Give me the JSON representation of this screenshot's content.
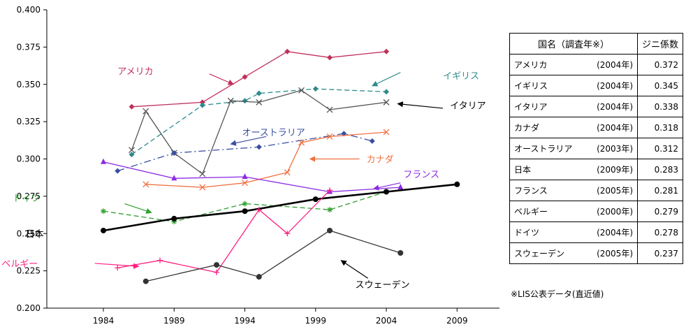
{
  "chart_data": {
    "type": "line",
    "title": "",
    "xlabel": "",
    "ylabel": "",
    "xlim": [
      1980,
      2012
    ],
    "ylim": [
      0.2,
      0.4
    ],
    "x_ticks": [
      1984,
      1989,
      1994,
      1999,
      2004,
      2009
    ],
    "y_ticks": [
      0.2,
      0.225,
      0.25,
      0.275,
      0.3,
      0.325,
      0.35,
      0.375,
      0.4
    ],
    "y_tick_labels": [
      "0.200",
      "0.225",
      "0.250",
      "0.275",
      "0.300",
      "0.325",
      "0.350",
      "0.375",
      "0.400"
    ],
    "grid": false,
    "series": [
      {
        "name": "アメリカ",
        "color": "#c0305a",
        "marker": "diamond",
        "dash": "solid",
        "points": [
          [
            1986,
            0.335
          ],
          [
            1991,
            0.338
          ],
          [
            1994,
            0.355
          ],
          [
            1997,
            0.372
          ],
          [
            2000,
            0.368
          ],
          [
            2004,
            0.372
          ]
        ]
      },
      {
        "name": "イギリス",
        "color": "#2e8b8b",
        "marker": "diamond",
        "dash": "dashed",
        "points": [
          [
            1986,
            0.303
          ],
          [
            1991,
            0.336
          ],
          [
            1994,
            0.339
          ],
          [
            1995,
            0.344
          ],
          [
            1999,
            0.347
          ],
          [
            2004,
            0.345
          ]
        ]
      },
      {
        "name": "イタリア",
        "color": "#555555",
        "marker": "x",
        "dash": "solid",
        "points": [
          [
            1986,
            0.306
          ],
          [
            1987,
            0.332
          ],
          [
            1989,
            0.304
          ],
          [
            1991,
            0.29
          ],
          [
            1993,
            0.339
          ],
          [
            1995,
            0.338
          ],
          [
            1998,
            0.346
          ],
          [
            2000,
            0.333
          ],
          [
            2004,
            0.338
          ]
        ]
      },
      {
        "name": "オーストラリア",
        "color": "#3a4fa0",
        "marker": "diamond",
        "dash": "dashdot",
        "points": [
          [
            1985,
            0.292
          ],
          [
            1989,
            0.304
          ],
          [
            1995,
            0.308
          ],
          [
            2001,
            0.317
          ],
          [
            2003,
            0.312
          ]
        ]
      },
      {
        "name": "カナダ",
        "color": "#f07040",
        "marker": "x",
        "dash": "solid",
        "points": [
          [
            1987,
            0.283
          ],
          [
            1991,
            0.281
          ],
          [
            1994,
            0.284
          ],
          [
            1997,
            0.291
          ],
          [
            1998,
            0.311
          ],
          [
            2000,
            0.315
          ],
          [
            2004,
            0.318
          ]
        ]
      },
      {
        "name": "フランス",
        "color": "#8a2be2",
        "marker": "triangle",
        "dash": "solid",
        "points": [
          [
            1984,
            0.298
          ],
          [
            1989,
            0.287
          ],
          [
            1994,
            0.288
          ],
          [
            2000,
            0.278
          ],
          [
            2005,
            0.281
          ]
        ]
      },
      {
        "name": "ドイツ",
        "color": "#2ea02e",
        "marker": "star",
        "dash": "dashed",
        "points": [
          [
            1984,
            0.265
          ],
          [
            1989,
            0.258
          ],
          [
            1994,
            0.27
          ],
          [
            2000,
            0.266
          ],
          [
            2004,
            0.278
          ]
        ]
      },
      {
        "name": "日本",
        "color": "#000000",
        "marker": "circle",
        "dash": "solid",
        "bold": true,
        "points": [
          [
            1984,
            0.252
          ],
          [
            1989,
            0.26
          ],
          [
            1994,
            0.265
          ],
          [
            1999,
            0.273
          ],
          [
            2004,
            0.278
          ],
          [
            2009,
            0.283
          ]
        ]
      },
      {
        "name": "ベルギー",
        "color": "#ff2080",
        "marker": "plus",
        "dash": "solid",
        "points": [
          [
            1985,
            0.227
          ],
          [
            1988,
            0.232
          ],
          [
            1992,
            0.224
          ],
          [
            1995,
            0.266
          ],
          [
            1997,
            0.25
          ],
          [
            2000,
            0.279
          ]
        ]
      },
      {
        "name": "スウェーデン",
        "color": "#333333",
        "marker": "circle",
        "dash": "solid",
        "points": [
          [
            1987,
            0.218
          ],
          [
            1992,
            0.229
          ],
          [
            1995,
            0.221
          ],
          [
            2000,
            0.252
          ],
          [
            2005,
            0.237
          ]
        ]
      }
    ],
    "annotations": [
      {
        "text": "アメリカ",
        "color": "#c0305a",
        "at": [
          1985,
          0.359
        ],
        "anchor": "start",
        "arrow_from": [
          1991.5,
          0.357
        ],
        "arrow_to": [
          1993.2,
          0.35
        ]
      },
      {
        "text": "イギリス",
        "color": "#2e8b8b",
        "at": [
          2008,
          0.356
        ],
        "anchor": "start",
        "arrow_from": [
          2005,
          0.358
        ],
        "arrow_to": [
          2003,
          0.349
        ]
      },
      {
        "text": "イタリア",
        "color": "#000000",
        "at": [
          2008.5,
          0.336
        ],
        "anchor": "start",
        "arrow_from": [
          2008,
          0.334
        ],
        "arrow_to": [
          2004.8,
          0.337
        ]
      },
      {
        "text": "オーストラリア",
        "color": "#3a4fa0",
        "at": [
          1993.8,
          0.318
        ],
        "anchor": "start",
        "arrow_from": [
          1995.5,
          0.315
        ],
        "arrow_to": [
          1993,
          0.31
        ]
      },
      {
        "text": "カナダ",
        "color": "#f07040",
        "at": [
          2002.6,
          0.3
        ],
        "anchor": "start",
        "arrow_from": [
          2002.1,
          0.3
        ],
        "arrow_to": [
          1998.6,
          0.3
        ]
      },
      {
        "text": "フランス",
        "color": "#8a2be2",
        "at": [
          2005.2,
          0.29
        ],
        "anchor": "start",
        "arrow_from": [
          2005,
          0.284
        ],
        "arrow_to": [
          2003.1,
          0.28
        ]
      },
      {
        "text": "ドイツ",
        "color": "#2ea02e",
        "at": [
          1977.6,
          0.274
        ],
        "anchor": "start",
        "arrow_from": [
          1985.5,
          0.27
        ],
        "arrow_to": [
          1987.4,
          0.264
        ]
      },
      {
        "text": "日本",
        "color": "#000000",
        "at": [
          1978.5,
          0.25
        ],
        "anchor": "start",
        "arrow_from": null,
        "arrow_to": null
      },
      {
        "text": "ベルギー",
        "color": "#ff2080",
        "at": [
          1976.8,
          0.23
        ],
        "anchor": "start",
        "arrow_from": [
          1983.4,
          0.23
        ],
        "arrow_to": [
          1986.5,
          0.228
        ]
      },
      {
        "text": "スウェーデン",
        "color": "#000000",
        "at": [
          2001.8,
          0.216
        ],
        "anchor": "start",
        "arrow_from": [
          2002.7,
          0.22
        ],
        "arrow_to": [
          2000.8,
          0.232
        ]
      }
    ]
  },
  "table": {
    "header_name": "国名（調査年※）",
    "header_value": "ジニ係数",
    "rows": [
      {
        "name": "アメリカ",
        "year": "(2004年)",
        "value": "0.372"
      },
      {
        "name": "イギリス",
        "year": "(2004年)",
        "value": "0.345"
      },
      {
        "name": "イタリア",
        "year": "(2004年)",
        "value": "0.338"
      },
      {
        "name": "カナダ",
        "year": "(2004年)",
        "value": "0.318"
      },
      {
        "name": "オーストラリア",
        "year": "(2003年)",
        "value": "0.312"
      },
      {
        "name": "日本",
        "year": "(2009年)",
        "value": "0.283"
      },
      {
        "name": "フランス",
        "year": "(2005年)",
        "value": "0.281"
      },
      {
        "name": "ベルギー",
        "year": "(2000年)",
        "value": "0.279"
      },
      {
        "name": "ドイツ",
        "year": "(2004年)",
        "value": "0.278"
      },
      {
        "name": "スウェーデン",
        "year": "(2005年)",
        "value": "0.237"
      }
    ],
    "note": "※LIS公表データ(直近値)"
  }
}
